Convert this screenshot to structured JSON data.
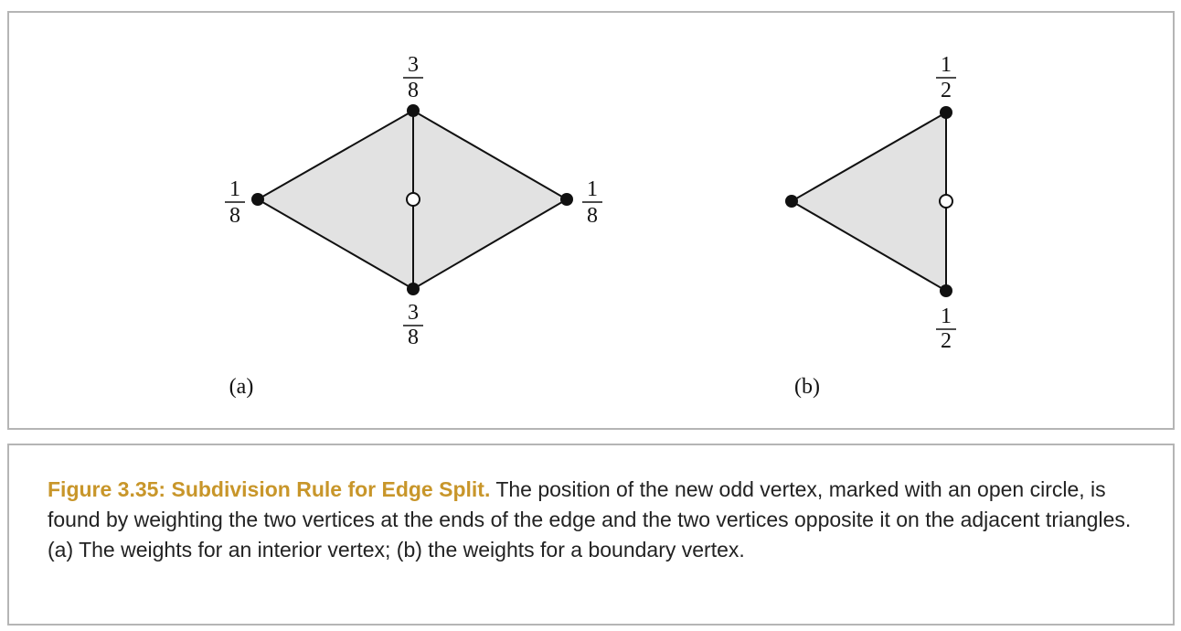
{
  "figure": {
    "panel_a": {
      "label": "(a)",
      "weights": {
        "top": {
          "num": "3",
          "den": "8"
        },
        "bottom": {
          "num": "3",
          "den": "8"
        },
        "left": {
          "num": "1",
          "den": "8"
        },
        "right": {
          "num": "1",
          "den": "8"
        }
      }
    },
    "panel_b": {
      "label": "(b)",
      "weights": {
        "top": {
          "num": "1",
          "den": "2"
        },
        "bottom": {
          "num": "1",
          "den": "2"
        }
      }
    },
    "colors": {
      "fill": "#e2e2e2",
      "stroke": "#111111",
      "caption_title": "#c8962a"
    }
  },
  "caption": {
    "title": "Figure 3.35: Subdivision Rule for Edge Split.",
    "body": " The position of the new odd vertex, marked with an open circle, is found by weighting the two vertices at the ends of the edge and the two vertices opposite it on the adjacent triangles. (a) The weights for an interior vertex; (b) the weights for a boundary vertex."
  }
}
